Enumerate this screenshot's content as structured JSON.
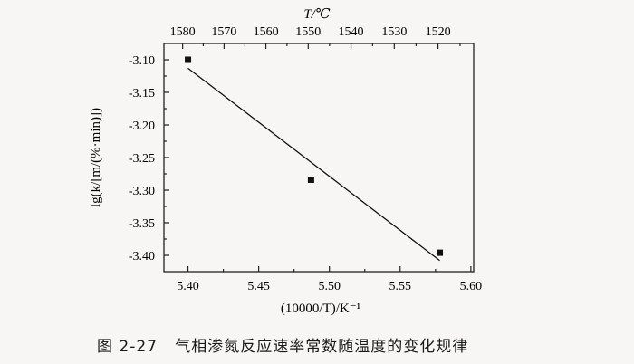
{
  "chart_data": {
    "type": "scatter",
    "caption": "图 2-27   气相渗氮反应速率常数随温度的变化规律",
    "xlabel": "(10000/T)/K⁻¹",
    "ylabel": "lg(k/[m/(%·min)])",
    "x2label": "T/℃",
    "xlim": [
      5.383,
      5.602
    ],
    "ylim": [
      -3.425,
      -3.075
    ],
    "xticks": [
      "5.40",
      "5.45",
      "5.50",
      "5.55",
      "5.60"
    ],
    "yticks": [
      "-3.10",
      "-3.15",
      "-3.20",
      "-3.25",
      "-3.30",
      "-3.35",
      "-3.40"
    ],
    "x2ticks": [
      "1580",
      "1570",
      "1560",
      "1550",
      "1540",
      "1530",
      "1520"
    ],
    "points": [
      {
        "x": 5.4,
        "y": -3.1
      },
      {
        "x": 5.487,
        "y": -3.284
      },
      {
        "x": 5.578,
        "y": -3.396
      }
    ],
    "fit_line": [
      {
        "x": 5.4,
        "y": -3.113
      },
      {
        "x": 5.578,
        "y": -3.408
      }
    ],
    "grid": false,
    "legend": "none"
  }
}
